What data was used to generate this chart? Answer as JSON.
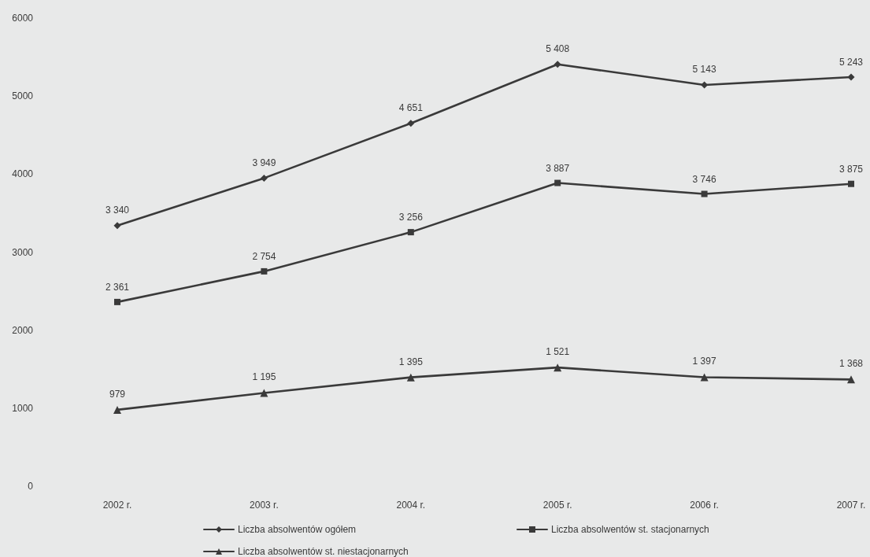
{
  "chart_data": {
    "type": "line",
    "categories": [
      "2002 r.",
      "2003 r.",
      "2004 r.",
      "2005 r.",
      "2006 r.",
      "2007 r."
    ],
    "series": [
      {
        "name": "Liczba absolwentów ogółem",
        "color": "#3a3a3a",
        "marker": "diamond",
        "values": [
          3340,
          3949,
          4651,
          5408,
          5143,
          5243
        ],
        "value_labels": [
          "3 340",
          "3 949",
          "4 651",
          "5 408",
          "5 143",
          "5 243"
        ]
      },
      {
        "name": "Liczba absolwentów st. stacjonarnych",
        "color": "#3a3a3a",
        "marker": "square",
        "values": [
          2361,
          2754,
          3256,
          3887,
          3746,
          3875
        ],
        "value_labels": [
          "2 361",
          "2 754",
          "3 256",
          "3 887",
          "3 746",
          "3 875"
        ]
      },
      {
        "name": "Liczba absolwentów st. niestacjonarnych",
        "color": "#3a3a3a",
        "marker": "triangle",
        "values": [
          979,
          1195,
          1395,
          1521,
          1397,
          1368
        ],
        "value_labels": [
          "979",
          "1 195",
          "1 395",
          "1 521",
          "1 397",
          "1 368"
        ]
      }
    ],
    "ylim": [
      0,
      6000
    ],
    "yticks": [
      0,
      1000,
      2000,
      3000,
      4000,
      5000,
      6000
    ],
    "legend": "bottom",
    "line_style": "solid"
  }
}
